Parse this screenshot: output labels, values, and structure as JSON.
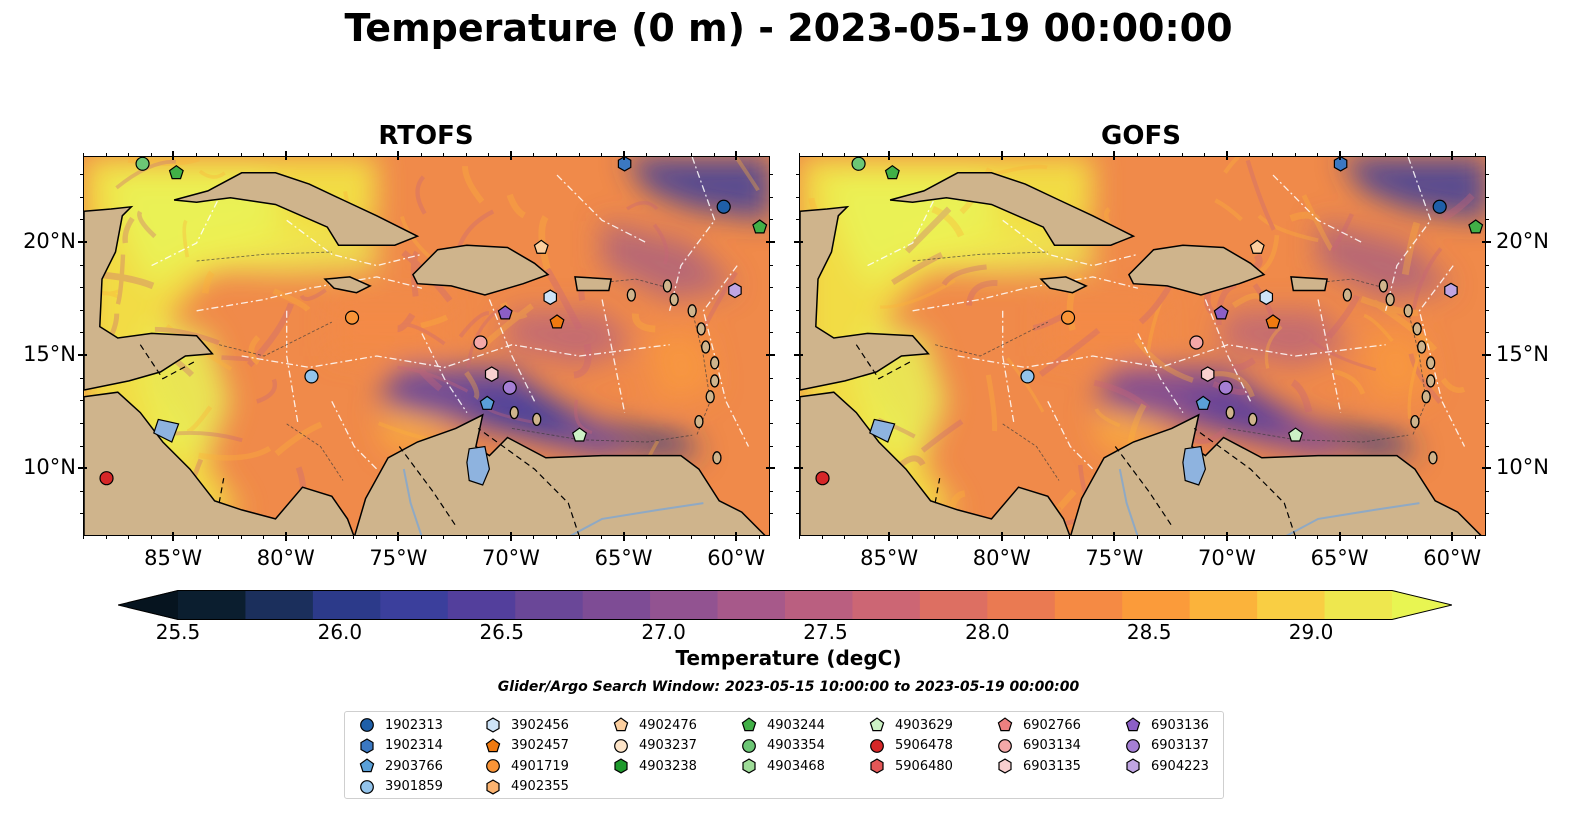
{
  "title": "Temperature (0 m) - 2023-05-19 00:00:00",
  "panels": [
    {
      "title": "RTOFS"
    },
    {
      "title": "GOFS"
    }
  ],
  "axes": {
    "x_ticks": [
      "85°W",
      "80°W",
      "75°W",
      "70°W",
      "65°W",
      "60°W"
    ],
    "x_tick_values": [
      -85,
      -80,
      -75,
      -70,
      -65,
      -60
    ],
    "y_ticks": [
      "20°N",
      "15°N",
      "10°N"
    ],
    "y_tick_values": [
      20,
      15,
      10
    ],
    "lon_range": [
      -89,
      -58.5
    ],
    "lat_range": [
      7,
      23.8
    ]
  },
  "colorbar": {
    "label": "Temperature (degC)",
    "tick_labels": [
      "25.5",
      "26.0",
      "26.5",
      "27.0",
      "27.5",
      "28.0",
      "28.5",
      "29.0"
    ],
    "tick_values": [
      25.5,
      26.0,
      26.5,
      27.0,
      27.5,
      28.0,
      28.5,
      29.0
    ],
    "range": [
      25.5,
      29.25
    ],
    "extend": "both",
    "colors": [
      "#0b1e2f",
      "#1b2f5c",
      "#2c3a8a",
      "#3b3f9c",
      "#533f9c",
      "#6a4798",
      "#7e4c95",
      "#925391",
      "#a7598a",
      "#ba5f80",
      "#cc6674",
      "#dd6f62",
      "#ea7a52",
      "#f58a44",
      "#fb9b3a",
      "#fbb33b",
      "#f9ce43",
      "#eee74e"
    ],
    "under_color": "#06141f",
    "over_color": "#e8f552"
  },
  "search_window": "Glider/Argo Search Window: 2023-05-15 10:00:00 to 2023-05-19 00:00:00",
  "legend": {
    "columns": [
      [
        {
          "id": "1902313",
          "marker": "circle",
          "color": "#1f5fa8"
        },
        {
          "id": "1902314",
          "marker": "hexagon",
          "color": "#3b78c2"
        },
        {
          "id": "2903766",
          "marker": "pentagon",
          "color": "#5aa0d8"
        },
        {
          "id": "3901859",
          "marker": "circle",
          "color": "#93c4ec"
        }
      ],
      [
        {
          "id": "3902456",
          "marker": "hexagon",
          "color": "#cde3f7"
        },
        {
          "id": "3902457",
          "marker": "pentagon",
          "color": "#f07a10"
        },
        {
          "id": "4901719",
          "marker": "circle",
          "color": "#f99437"
        },
        {
          "id": "4902355",
          "marker": "hexagon",
          "color": "#fbb370"
        }
      ],
      [
        {
          "id": "4902476",
          "marker": "pentagon",
          "color": "#fccf9f"
        },
        {
          "id": "4903237",
          "marker": "circle",
          "color": "#fde4c8"
        },
        {
          "id": "4903238",
          "marker": "hexagon",
          "color": "#1e9a2c"
        }
      ],
      [
        {
          "id": "4903244",
          "marker": "pentagon",
          "color": "#41b047"
        },
        {
          "id": "4903354",
          "marker": "circle",
          "color": "#6cc675"
        },
        {
          "id": "4903468",
          "marker": "hexagon",
          "color": "#9edc98"
        }
      ],
      [
        {
          "id": "4903629",
          "marker": "pentagon",
          "color": "#cdf2c6"
        },
        {
          "id": "5906478",
          "marker": "circle",
          "color": "#d62728"
        },
        {
          "id": "5906480",
          "marker": "hexagon",
          "color": "#e45757"
        }
      ],
      [
        {
          "id": "6902766",
          "marker": "pentagon",
          "color": "#ec8080"
        },
        {
          "id": "6903134",
          "marker": "circle",
          "color": "#f3a8a8"
        },
        {
          "id": "6903135",
          "marker": "hexagon",
          "color": "#f9d0d0"
        }
      ],
      [
        {
          "id": "6903136",
          "marker": "pentagon",
          "color": "#8c5fc6"
        },
        {
          "id": "6903137",
          "marker": "circle",
          "color": "#a57fd4"
        },
        {
          "id": "6904223",
          "marker": "hexagon",
          "color": "#c0a5e2"
        }
      ]
    ]
  },
  "floats": [
    {
      "id": "4903354",
      "lon": -86.4,
      "lat": 23.5
    },
    {
      "id": "4903244",
      "lon": -84.9,
      "lat": 23.1
    },
    {
      "id": "1902314",
      "lon": -65.0,
      "lat": 23.5
    },
    {
      "id": "1902313",
      "lon": -60.6,
      "lat": 21.6
    },
    {
      "id": "4903244",
      "lon": -59.0,
      "lat": 20.7
    },
    {
      "id": "4902476",
      "lon": -68.7,
      "lat": 19.8
    },
    {
      "id": "6904223",
      "lon": -60.1,
      "lat": 17.9
    },
    {
      "id": "3902456",
      "lon": -68.3,
      "lat": 17.6
    },
    {
      "id": "4901719",
      "lon": -77.1,
      "lat": 16.7
    },
    {
      "id": "6903136",
      "lon": -70.3,
      "lat": 16.9
    },
    {
      "id": "3902457",
      "lon": -68.0,
      "lat": 16.5
    },
    {
      "id": "6903134",
      "lon": -71.4,
      "lat": 15.6
    },
    {
      "id": "3901859",
      "lon": -78.9,
      "lat": 14.1
    },
    {
      "id": "6903135",
      "lon": -70.9,
      "lat": 14.2
    },
    {
      "id": "6903137",
      "lon": -70.1,
      "lat": 13.6
    },
    {
      "id": "2903766",
      "lon": -71.1,
      "lat": 12.9
    },
    {
      "id": "4903629",
      "lon": -67.0,
      "lat": 11.5
    },
    {
      "id": "5906478",
      "lon": -88.0,
      "lat": 9.6
    }
  ]
}
